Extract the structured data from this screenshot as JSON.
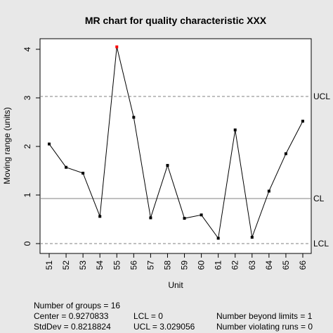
{
  "chart_data": {
    "type": "line",
    "title": "MR chart for quality characteristic XXX",
    "xlabel": "Unit",
    "ylabel": "Moving range (units)",
    "categories": [
      "51",
      "52",
      "53",
      "54",
      "55",
      "56",
      "57",
      "58",
      "59",
      "60",
      "61",
      "62",
      "63",
      "64",
      "65",
      "66"
    ],
    "values": [
      2.05,
      1.57,
      1.45,
      0.56,
      4.05,
      2.6,
      0.53,
      1.61,
      0.52,
      0.59,
      0.11,
      2.34,
      0.13,
      1.08,
      1.85,
      2.52
    ],
    "out_of_control_index": 4,
    "ylim": [
      0,
      4
    ],
    "y_ticks": [
      0,
      1,
      2,
      3,
      4
    ],
    "center": 0.9270833,
    "ucl": 3.029056,
    "lcl": 0,
    "limit_labels": {
      "ucl": "UCL",
      "cl": "CL",
      "lcl": "LCL"
    },
    "grid": false,
    "colors": {
      "line": "#000000",
      "point": "#000000",
      "violation": "#ff0000",
      "limit": "#808080"
    }
  },
  "stats": {
    "groups": "Number of groups = 16",
    "center": "Center = 0.9270833",
    "stddev": "StdDev = 0.8218824",
    "lcl": "LCL = 0",
    "ucl": "UCL = 3.029056",
    "beyond": "Number beyond limits = 1",
    "violating": "Number violating runs = 0"
  }
}
